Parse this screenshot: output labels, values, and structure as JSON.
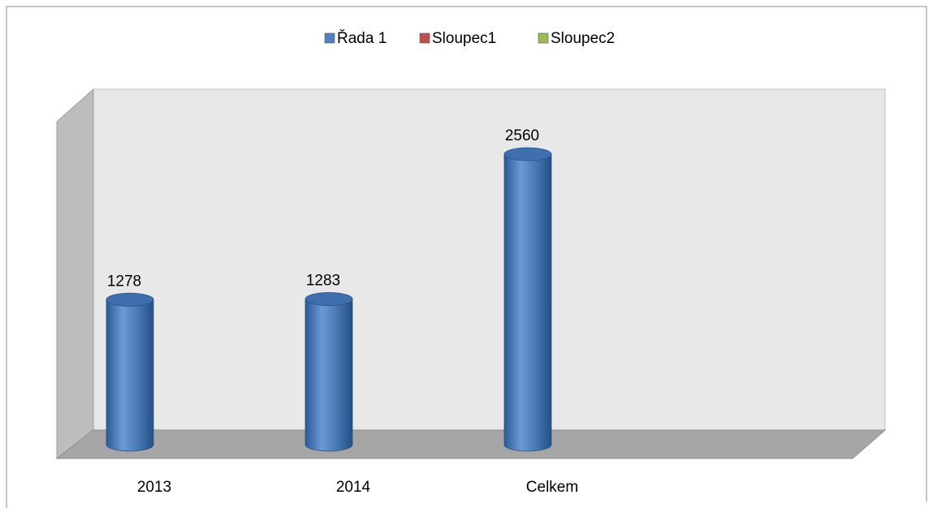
{
  "chart_data": {
    "type": "bar3d",
    "categories": [
      "2013",
      "2014",
      "Celkem",
      null
    ],
    "series": [
      {
        "name": "Řada 1",
        "color": "#4f81bd",
        "values": [
          1278,
          1283,
          2560,
          null
        ]
      },
      {
        "name": "Sloupec1",
        "color": "#c0504d",
        "values": [
          null,
          null,
          null,
          null
        ]
      },
      {
        "name": "Sloupec2",
        "color": "#9bbb59",
        "values": [
          null,
          null,
          null,
          null
        ]
      }
    ],
    "data_labels": true,
    "legend": "top"
  }
}
